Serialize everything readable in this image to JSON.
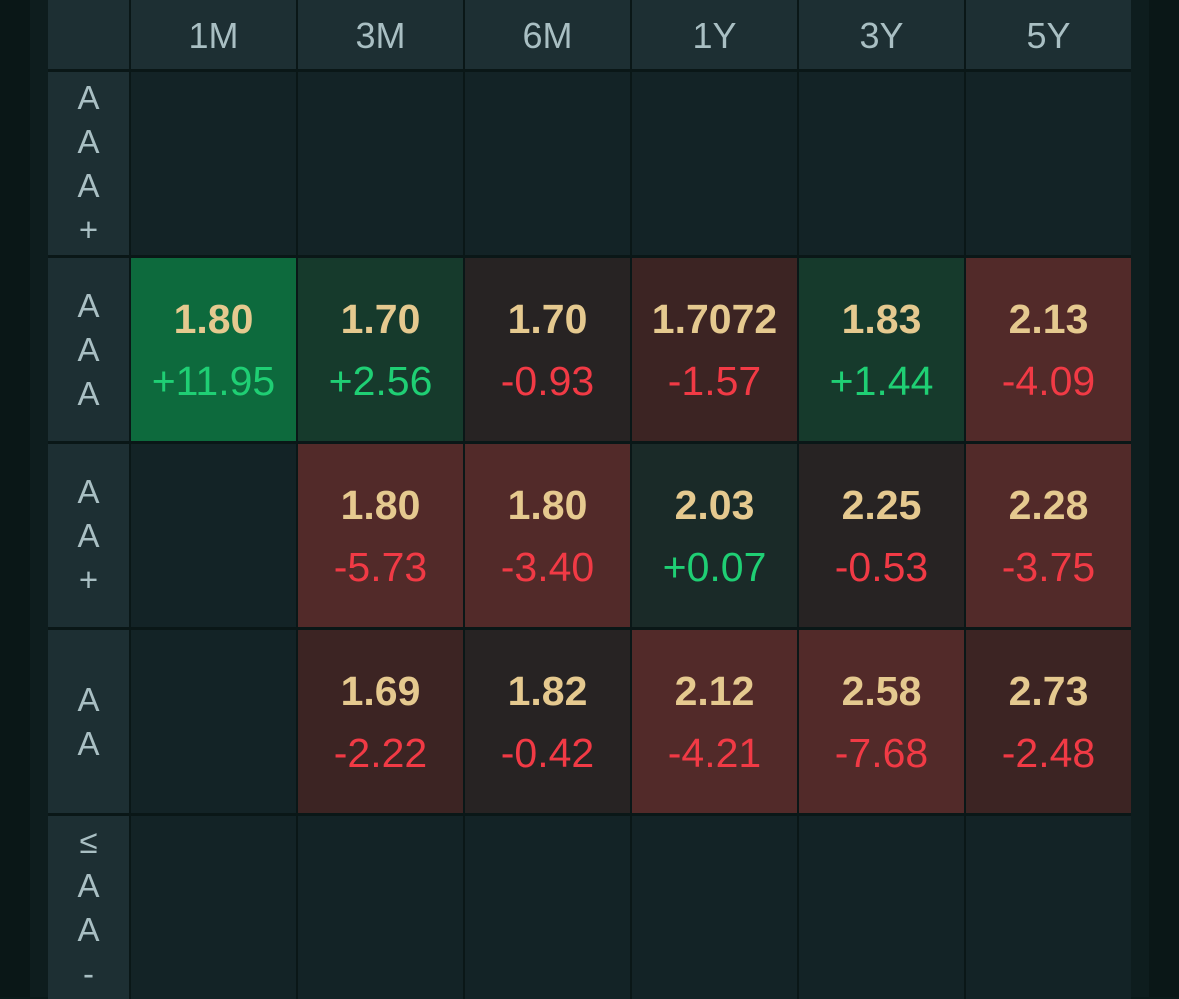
{
  "columns": [
    "1M",
    "3M",
    "6M",
    "1Y",
    "3Y",
    "5Y"
  ],
  "rows": [
    {
      "label_chars": [
        "A",
        "A",
        "A",
        "+"
      ],
      "cells": [
        null,
        null,
        null,
        null,
        null,
        null
      ]
    },
    {
      "label_chars": [
        "A",
        "A",
        "A"
      ],
      "cells": [
        {
          "value": "1.80",
          "change": "+11.95",
          "direction": "up"
        },
        {
          "value": "1.70",
          "change": "+2.56",
          "direction": "up"
        },
        {
          "value": "1.70",
          "change": "-0.93",
          "direction": "down"
        },
        {
          "value": "1.7072",
          "change": "-1.57",
          "direction": "down"
        },
        {
          "value": "1.83",
          "change": "+1.44",
          "direction": "up"
        },
        {
          "value": "2.13",
          "change": "-4.09",
          "direction": "down"
        }
      ]
    },
    {
      "label_chars": [
        "A",
        "A",
        "+"
      ],
      "cells": [
        null,
        {
          "value": "1.80",
          "change": "-5.73",
          "direction": "down"
        },
        {
          "value": "1.80",
          "change": "-3.40",
          "direction": "down"
        },
        {
          "value": "2.03",
          "change": "+0.07",
          "direction": "up"
        },
        {
          "value": "2.25",
          "change": "-0.53",
          "direction": "down"
        },
        {
          "value": "2.28",
          "change": "-3.75",
          "direction": "down"
        }
      ]
    },
    {
      "label_chars": [
        "A",
        "A"
      ],
      "cells": [
        null,
        {
          "value": "1.69",
          "change": "-2.22",
          "direction": "down"
        },
        {
          "value": "1.82",
          "change": "-0.42",
          "direction": "down"
        },
        {
          "value": "2.12",
          "change": "-4.21",
          "direction": "down"
        },
        {
          "value": "2.58",
          "change": "-7.68",
          "direction": "down"
        },
        {
          "value": "2.73",
          "change": "-2.48",
          "direction": "down"
        }
      ]
    },
    {
      "label_chars": [
        "≤",
        "A",
        "A",
        "-"
      ],
      "cells": [
        null,
        null,
        null,
        null,
        null,
        null
      ]
    }
  ],
  "colors": {
    "up": "#1fcf74",
    "down": "#f13a45",
    "value": "#e5c98f",
    "header_bg": "#1d2f33",
    "empty_bg": "#132326"
  }
}
